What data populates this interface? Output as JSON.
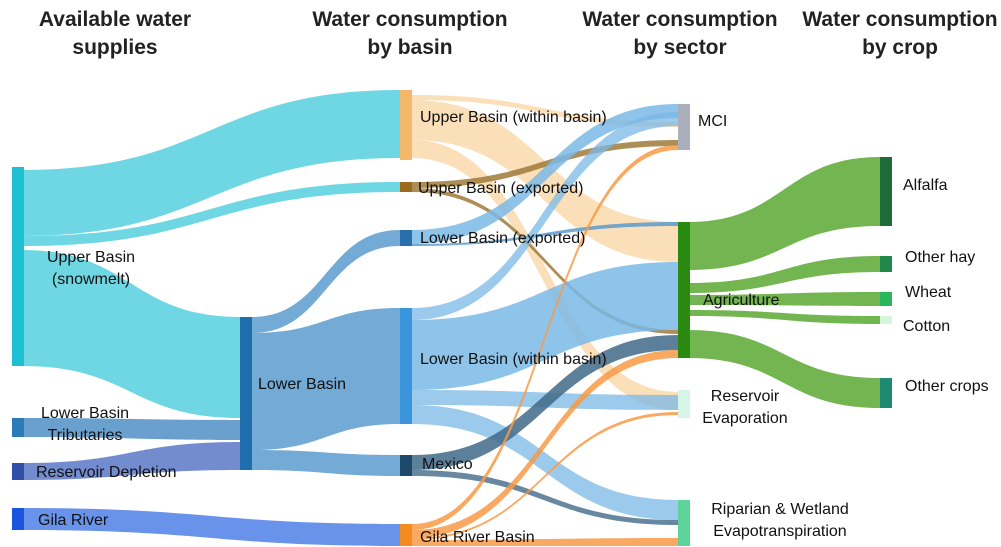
{
  "headers": [
    "Available water supplies",
    "Water consumption by basin",
    "Water consumption by sector",
    "Water consumption by crop"
  ],
  "nodes": [
    {
      "label": "Upper Basin (snowmelt)"
    },
    {
      "label": "Lower Basin Tributaries"
    },
    {
      "label": "Reservoir Depletion"
    },
    {
      "label": "Gila River"
    },
    {
      "label": "Lower Basin"
    },
    {
      "label": "Upper Basin (within basin)"
    },
    {
      "label": "Upper Basin (exported)"
    },
    {
      "label": "Lower Basin (exported)"
    },
    {
      "label": "Lower Basin (within basin)"
    },
    {
      "label": "Mexico"
    },
    {
      "label": "Gila River Basin"
    },
    {
      "label": "MCI"
    },
    {
      "label": "Agriculture"
    },
    {
      "label": "Reservoir Evaporation"
    },
    {
      "label": "Riparian & Wetland Evapotranspiration"
    },
    {
      "label": "Alfalfa"
    },
    {
      "label": "Other hay"
    },
    {
      "label": "Wheat"
    },
    {
      "label": "Cotton"
    },
    {
      "label": "Other crops"
    }
  ]
}
